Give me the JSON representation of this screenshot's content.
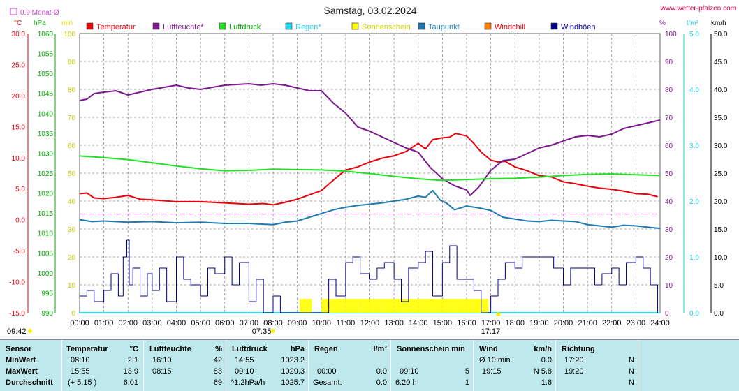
{
  "title": "Samstag, 03.02.2024",
  "website": "www.wetter-pfalzen.com",
  "monthly_avg_label": "0.9 Monat-Ø",
  "colors": {
    "temperature": "#e8000b",
    "humidity": "#7a1a8c",
    "pressure": "#22e022",
    "rain": "#22ddee",
    "sunshine": "#ffff00",
    "dewpoint": "#1f7ab0",
    "windchill": "#ff7f00",
    "gusts": "#00008b",
    "monthly_avg": "#cc44cc"
  },
  "left_axes": {
    "temp_unit": "°C",
    "pressure_unit": "hPa",
    "sun_unit": "min",
    "temp_ticks": [
      "30.0",
      "25.0",
      "20.0",
      "15.0",
      "10.0",
      "5.0",
      "0.0",
      "-5.0",
      "-10.0",
      "-15.0"
    ],
    "pressure_ticks": [
      "1060",
      "1055",
      "1050",
      "1045",
      "1040",
      "1035",
      "1030",
      "1025",
      "1020",
      "1015",
      "1010",
      "1005",
      "1000",
      "995",
      "990"
    ],
    "sun_ticks": [
      "100",
      "90",
      "80",
      "70",
      "60",
      "50",
      "40",
      "30",
      "20",
      "10",
      "0"
    ]
  },
  "right_axes": {
    "humidity_unit": "%",
    "rain_unit": "l/m²",
    "wind_unit": "km/h",
    "humidity_ticks": [
      "100",
      "90",
      "80",
      "70",
      "60",
      "50",
      "40",
      "30",
      "20",
      "10",
      "0"
    ],
    "rain_ticks": [
      "5.0",
      "4.0",
      "3.0",
      "2.0",
      "1.0",
      "0.0"
    ],
    "wind_ticks": [
      "50.0",
      "45.0",
      "40.0",
      "35.0",
      "30.0",
      "25.0",
      "20.0",
      "15.0",
      "10.0",
      "5.0",
      "0.0"
    ]
  },
  "x_ticks": [
    "00:00",
    "01:00",
    "02:00",
    "03:00",
    "04:00",
    "05:00",
    "06:00",
    "07:00",
    "08:00",
    "09:00",
    "10:00",
    "11:00",
    "12:00",
    "13:00",
    "14:00",
    "15:00",
    "16:00",
    "17:00",
    "18:00",
    "19:00",
    "20:00",
    "21:00",
    "22:00",
    "23:00",
    "24:00"
  ],
  "sunrise": "07:35",
  "sunset": "17:17",
  "corner_time": "09:42",
  "legend": [
    "Temperatur",
    "Luftfeuchte*",
    "Luftdruck",
    "Regen*",
    "Sonnenschein",
    "Taupunkt",
    "Windchill",
    "Windböen"
  ],
  "chart_data": {
    "type": "line",
    "title": "Samstag, 03.02.2024",
    "x_unit": "hour of day",
    "xlim": [
      0,
      24
    ],
    "series": [
      {
        "name": "Temperatur",
        "unit": "°C",
        "axis": "temp",
        "ylim": [
          -15,
          30
        ],
        "x": [
          0,
          0.3,
          0.6,
          1,
          1.5,
          2,
          2.5,
          3,
          4,
          5,
          6,
          7,
          7.6,
          8,
          8.5,
          9,
          9.5,
          10,
          10.5,
          11,
          11.5,
          12,
          12.5,
          13,
          13.5,
          14,
          14.3,
          14.6,
          15,
          15.3,
          15.55,
          16,
          16.3,
          16.6,
          17,
          17.3,
          17.6,
          18,
          18.5,
          19,
          19.5,
          20,
          20.5,
          21,
          21.5,
          22,
          22.5,
          23,
          23.5,
          23.9
        ],
        "y": [
          4.2,
          4.3,
          3.5,
          3.4,
          3.6,
          3.9,
          3.3,
          3.2,
          2.9,
          2.9,
          2.7,
          2.5,
          2.6,
          2.4,
          2.8,
          3.3,
          4.0,
          4.7,
          6.4,
          8.0,
          8.5,
          9.3,
          9.9,
          10.3,
          11.0,
          12.3,
          11.4,
          12.9,
          13.2,
          13.3,
          13.9,
          13.5,
          12.3,
          10.9,
          9.6,
          9.3,
          9.4,
          8.5,
          7.9,
          7.1,
          6.9,
          6.1,
          5.8,
          5.4,
          5.1,
          4.9,
          4.6,
          4.2,
          4.1,
          3.7
        ]
      },
      {
        "name": "Luftfeuchte*",
        "unit": "%",
        "axis": "humidity",
        "ylim": [
          0,
          100
        ],
        "x": [
          0,
          0.3,
          0.6,
          1,
          1.5,
          2,
          2.5,
          3,
          4,
          4.5,
          5,
          6,
          7,
          7.5,
          8,
          8.5,
          9,
          9.5,
          10,
          10.5,
          11,
          11.5,
          12,
          12.5,
          13,
          13.5,
          14,
          14.5,
          15,
          15.5,
          16,
          16.15,
          16.5,
          17,
          17.5,
          18,
          18.5,
          19,
          19.5,
          20,
          20.5,
          21,
          21.5,
          22,
          22.5,
          23,
          23.5,
          24
        ],
        "y": [
          76,
          76.5,
          78.5,
          79,
          79.5,
          78,
          79,
          80,
          81.5,
          80.5,
          80,
          81.5,
          82,
          81.5,
          82,
          81.5,
          80.5,
          79.5,
          79.5,
          75,
          71.5,
          66.5,
          65,
          63,
          61,
          59,
          57.5,
          52,
          48,
          45.5,
          44,
          42,
          45,
          51,
          54.5,
          55,
          57,
          59,
          60,
          61.5,
          63,
          63.5,
          63,
          64,
          66,
          67,
          68,
          69
        ]
      },
      {
        "name": "Luftdruck",
        "unit": "hPa",
        "axis": "pressure",
        "ylim": [
          990,
          1060
        ],
        "x": [
          0,
          1,
          2,
          3,
          4,
          5,
          6,
          7,
          8,
          9,
          10,
          11,
          12,
          13,
          14,
          14.92,
          15.5,
          16,
          17,
          18,
          19,
          20,
          21,
          22,
          23,
          24
        ],
        "y": [
          1029.3,
          1028.9,
          1028.4,
          1027.6,
          1026.8,
          1026.1,
          1025.6,
          1025.7,
          1026.0,
          1025.9,
          1025.8,
          1025.5,
          1024.9,
          1024.2,
          1023.6,
          1023.2,
          1023.3,
          1023.4,
          1023.6,
          1023.7,
          1024.0,
          1024.4,
          1024.7,
          1024.8,
          1024.6,
          1024.4
        ]
      },
      {
        "name": "Regen*",
        "unit": "l/m²",
        "axis": "rain",
        "ylim": [
          0,
          5
        ],
        "x": [
          0,
          24
        ],
        "y": [
          0,
          0
        ]
      },
      {
        "name": "Sonnenschein",
        "unit": "min",
        "axis": "sun",
        "ylim": [
          0,
          100
        ],
        "x": [
          9.1,
          9.5,
          10,
          10.5,
          11,
          11.5,
          12,
          12.5,
          13,
          13.5,
          14,
          14.5,
          15,
          15.5,
          16,
          16.4
        ],
        "y": [
          5,
          0,
          5,
          5,
          5,
          5,
          5,
          5,
          5,
          5,
          5,
          5,
          5,
          5,
          5,
          5
        ]
      },
      {
        "name": "Taupunkt",
        "unit": "°C",
        "axis": "temp",
        "ylim": [
          -15,
          30
        ],
        "x": [
          0,
          0.5,
          1,
          2,
          3,
          4,
          5,
          6,
          7,
          8,
          8.5,
          9,
          9.5,
          10,
          10.5,
          11,
          11.5,
          12,
          12.5,
          13,
          13.5,
          14,
          14.3,
          14.6,
          14.9,
          15.2,
          15.5,
          16,
          16.5,
          17,
          17.5,
          18,
          18.5,
          19,
          19.5,
          20,
          20.5,
          21,
          21.5,
          22,
          22.5,
          23,
          23.5,
          24
        ],
        "y": [
          0,
          -0.3,
          -0.2,
          -0.4,
          -0.3,
          -0.5,
          -0.4,
          -0.6,
          -0.6,
          -0.8,
          -0.4,
          -0.2,
          0.4,
          1.0,
          1.6,
          2.0,
          2.3,
          2.5,
          2.7,
          3.0,
          3.3,
          3.8,
          3.6,
          4.7,
          3.2,
          2.6,
          1.6,
          2.2,
          1.9,
          1.5,
          0.4,
          0.1,
          -0.2,
          -0.3,
          -0.1,
          -0.2,
          -0.3,
          -0.8,
          -1.0,
          -1.2,
          -0.9,
          -1.0,
          -1.2,
          -1.4
        ]
      },
      {
        "name": "Windböen",
        "unit": "km/h",
        "axis": "wind",
        "ylim": [
          0,
          50
        ],
        "x": [
          0,
          0.3,
          0.6,
          1,
          1.3,
          1.6,
          1.8,
          1.95,
          2.05,
          2.2,
          2.5,
          2.8,
          3,
          3.3,
          3.6,
          4,
          4.3,
          4.6,
          5,
          5.3,
          5.6,
          6,
          6.3,
          6.6,
          7,
          7.3,
          7.6,
          8,
          8.3,
          8.6,
          9,
          9.3,
          9.6,
          10,
          10.3,
          10.6,
          11,
          11.3,
          11.6,
          12,
          12.3,
          12.6,
          13,
          13.3,
          13.6,
          14,
          14.3,
          14.6,
          15,
          15.3,
          15.6,
          16,
          16.3,
          16.6,
          17,
          17.3,
          17.6,
          18,
          18.3,
          18.6,
          19,
          19.3,
          19.6,
          20,
          20.3,
          20.6,
          21,
          21.3,
          21.6,
          22,
          22.3,
          22.6,
          23,
          23.3,
          23.6,
          23.9
        ],
        "y": [
          3,
          4,
          2,
          4,
          7,
          3,
          10,
          13,
          5,
          8,
          3,
          7,
          4,
          8,
          2,
          10,
          6,
          5,
          3,
          8,
          7,
          10,
          5,
          9,
          2,
          6,
          0,
          3,
          0,
          0,
          0,
          0,
          0,
          0,
          6,
          3,
          9,
          10,
          7,
          6,
          8,
          9,
          6,
          2,
          8,
          9,
          11,
          3,
          9,
          12,
          6,
          6,
          4,
          0,
          3,
          6,
          9,
          8,
          10,
          10,
          10,
          10,
          8,
          5,
          8,
          8,
          8,
          5,
          7,
          8,
          5,
          9,
          10,
          8,
          5,
          0
        ]
      }
    ],
    "monthly_avg_temp": 0.9
  },
  "stats": {
    "sensor": {
      "header": "Sensor",
      "rows": [
        "MinWert",
        "MaxWert",
        "Durchschnitt"
      ]
    },
    "temperature": {
      "header": "Temperatur",
      "unit": "°C",
      "times": [
        "08:10",
        "15:55",
        "(+ 5.15 )"
      ],
      "values": [
        "2.1",
        "13.9",
        "6.01"
      ]
    },
    "humidity": {
      "header": "Luftfeuchte",
      "unit": "%",
      "times": [
        "16:10",
        "08:15",
        ""
      ],
      "values": [
        "42",
        "83",
        "69"
      ]
    },
    "pressure": {
      "header": "Luftdruck",
      "unit": "hPa",
      "times": [
        "14:55",
        "00:10",
        "^1.2hPa/h"
      ],
      "values": [
        "1023.2",
        "1029.3",
        "1025.7"
      ]
    },
    "rain": {
      "header": "Regen",
      "unit": "l/m²",
      "times": [
        "",
        "00:00",
        "Gesamt:"
      ],
      "values": [
        "",
        "0.0",
        "0.0"
      ]
    },
    "sunshine": {
      "header": "Sonnenschein min",
      "times": [
        "",
        "09:10",
        "6:20 h"
      ],
      "values": [
        "",
        "5",
        "1"
      ]
    },
    "wind": {
      "header": "Wind",
      "unit": "km/h",
      "times": [
        "Ø 10 min.",
        "19:15",
        ""
      ],
      "values": [
        "0.0",
        "N 5.8",
        "1.6"
      ]
    },
    "direction": {
      "header": "Richtung",
      "times": [
        "17:20",
        "19:20",
        ""
      ],
      "values": [
        "N",
        "N",
        "N"
      ]
    }
  }
}
